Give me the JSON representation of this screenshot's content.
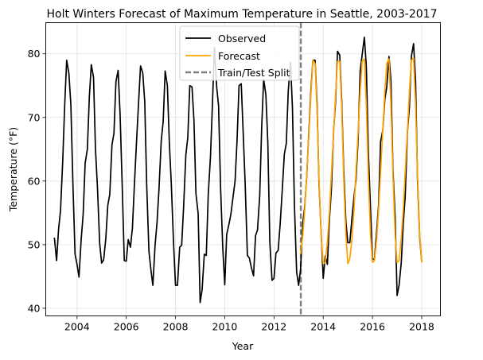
{
  "chart_data": {
    "type": "line",
    "title": "Holt Winters Forecast of Maximum Temperature in Seattle, 2003-2017",
    "xlabel": "Year",
    "ylabel": "Temperature (°F)",
    "xlim": [
      2002.73,
      2018.76
    ],
    "ylim": [
      38.8,
      84.9
    ],
    "x_ticks": [
      2004,
      2006,
      2008,
      2010,
      2012,
      2014,
      2016,
      2018
    ],
    "y_ticks": [
      40,
      50,
      60,
      70,
      80
    ],
    "grid": true,
    "legend_position": "top-center",
    "split_year": 2013.09,
    "series": [
      {
        "name": "Observed",
        "color": "#000000",
        "points": [
          [
            2003.08,
            51.1
          ],
          [
            2003.17,
            47.5
          ],
          [
            2003.25,
            52.4
          ],
          [
            2003.33,
            55.4
          ],
          [
            2003.42,
            63.2
          ],
          [
            2003.5,
            72.0
          ],
          [
            2003.58,
            79.0
          ],
          [
            2003.67,
            76.9
          ],
          [
            2003.75,
            72.0
          ],
          [
            2003.83,
            60.0
          ],
          [
            2003.92,
            48.5
          ],
          [
            2004.0,
            46.9
          ],
          [
            2004.08,
            44.9
          ],
          [
            2004.17,
            50.9
          ],
          [
            2004.25,
            54.8
          ],
          [
            2004.33,
            62.8
          ],
          [
            2004.42,
            65.0
          ],
          [
            2004.5,
            73.2
          ],
          [
            2004.58,
            78.3
          ],
          [
            2004.67,
            76.3
          ],
          [
            2004.75,
            65.0
          ],
          [
            2004.83,
            59.0
          ],
          [
            2004.92,
            50.2
          ],
          [
            2005.0,
            47.1
          ],
          [
            2005.08,
            47.6
          ],
          [
            2005.17,
            51.0
          ],
          [
            2005.25,
            56.2
          ],
          [
            2005.33,
            57.9
          ],
          [
            2005.42,
            65.7
          ],
          [
            2005.5,
            67.5
          ],
          [
            2005.58,
            75.6
          ],
          [
            2005.67,
            77.4
          ],
          [
            2005.75,
            70.4
          ],
          [
            2005.83,
            60.0
          ],
          [
            2005.92,
            47.5
          ],
          [
            2006.0,
            47.4
          ],
          [
            2006.08,
            50.8
          ],
          [
            2006.17,
            49.6
          ],
          [
            2006.25,
            52.6
          ],
          [
            2006.33,
            59.4
          ],
          [
            2006.42,
            66.4
          ],
          [
            2006.5,
            72.3
          ],
          [
            2006.58,
            78.1
          ],
          [
            2006.67,
            77.0
          ],
          [
            2006.75,
            72.5
          ],
          [
            2006.83,
            59.4
          ],
          [
            2006.92,
            49.0
          ],
          [
            2007.0,
            46.1
          ],
          [
            2007.08,
            43.6
          ],
          [
            2007.17,
            49.9
          ],
          [
            2007.25,
            53.5
          ],
          [
            2007.33,
            58.8
          ],
          [
            2007.42,
            66.3
          ],
          [
            2007.5,
            69.4
          ],
          [
            2007.58,
            77.3
          ],
          [
            2007.67,
            75.0
          ],
          [
            2007.75,
            66.0
          ],
          [
            2007.83,
            59.5
          ],
          [
            2007.92,
            50.3
          ],
          [
            2008.0,
            43.6
          ],
          [
            2008.08,
            43.6
          ],
          [
            2008.17,
            49.6
          ],
          [
            2008.25,
            49.9
          ],
          [
            2008.33,
            56.0
          ],
          [
            2008.42,
            64.1
          ],
          [
            2008.5,
            66.9
          ],
          [
            2008.58,
            75.0
          ],
          [
            2008.67,
            74.8
          ],
          [
            2008.75,
            69.5
          ],
          [
            2008.83,
            58.0
          ],
          [
            2008.92,
            54.9
          ],
          [
            2009.0,
            40.9
          ],
          [
            2009.08,
            42.9
          ],
          [
            2009.17,
            48.5
          ],
          [
            2009.25,
            48.3
          ],
          [
            2009.33,
            57.9
          ],
          [
            2009.42,
            63.8
          ],
          [
            2009.5,
            72.1
          ],
          [
            2009.58,
            81.0
          ],
          [
            2009.67,
            74.9
          ],
          [
            2009.75,
            71.8
          ],
          [
            2009.83,
            59.0
          ],
          [
            2009.92,
            49.5
          ],
          [
            2010.0,
            43.7
          ],
          [
            2010.08,
            51.6
          ],
          [
            2010.17,
            53.2
          ],
          [
            2010.25,
            54.8
          ],
          [
            2010.33,
            57.3
          ],
          [
            2010.42,
            60.0
          ],
          [
            2010.5,
            66.4
          ],
          [
            2010.58,
            75.0
          ],
          [
            2010.67,
            75.3
          ],
          [
            2010.75,
            67.5
          ],
          [
            2010.83,
            59.5
          ],
          [
            2010.92,
            48.3
          ],
          [
            2011.0,
            47.9
          ],
          [
            2011.08,
            46.4
          ],
          [
            2011.17,
            45.1
          ],
          [
            2011.25,
            51.4
          ],
          [
            2011.33,
            52.3
          ],
          [
            2011.42,
            57.7
          ],
          [
            2011.5,
            68.4
          ],
          [
            2011.58,
            76.0
          ],
          [
            2011.67,
            73.6
          ],
          [
            2011.75,
            66.0
          ],
          [
            2011.83,
            50.5
          ],
          [
            2011.92,
            44.4
          ],
          [
            2012.0,
            44.7
          ],
          [
            2012.08,
            48.7
          ],
          [
            2012.17,
            49.1
          ],
          [
            2012.25,
            53.2
          ],
          [
            2012.33,
            58.2
          ],
          [
            2012.42,
            64.2
          ],
          [
            2012.5,
            65.9
          ],
          [
            2012.58,
            74.2
          ],
          [
            2012.67,
            78.7
          ],
          [
            2012.75,
            71.5
          ],
          [
            2012.83,
            56.2
          ],
          [
            2012.92,
            45.7
          ],
          [
            2013.0,
            43.6
          ],
          [
            2013.08,
            46.1
          ],
          [
            2013.17,
            53.4
          ],
          [
            2013.25,
            56.0
          ],
          [
            2013.33,
            60.8
          ],
          [
            2013.42,
            68.0
          ],
          [
            2013.5,
            74.3
          ],
          [
            2013.58,
            79.0
          ],
          [
            2013.67,
            79.0
          ],
          [
            2013.75,
            72.0
          ],
          [
            2013.83,
            59.4
          ],
          [
            2013.92,
            51.4
          ],
          [
            2014.0,
            44.7
          ],
          [
            2014.08,
            48.2
          ],
          [
            2014.17,
            46.9
          ],
          [
            2014.25,
            53.9
          ],
          [
            2014.33,
            58.6
          ],
          [
            2014.42,
            67.8
          ],
          [
            2014.5,
            72.4
          ],
          [
            2014.58,
            80.4
          ],
          [
            2014.67,
            79.8
          ],
          [
            2014.75,
            72.5
          ],
          [
            2014.83,
            62.0
          ],
          [
            2014.92,
            53.6
          ],
          [
            2015.0,
            50.3
          ],
          [
            2015.08,
            50.3
          ],
          [
            2015.17,
            54.3
          ],
          [
            2015.25,
            57.5
          ],
          [
            2015.33,
            60.2
          ],
          [
            2015.42,
            66.8
          ],
          [
            2015.5,
            77.3
          ],
          [
            2015.58,
            79.8
          ],
          [
            2015.67,
            82.6
          ],
          [
            2015.75,
            78.1
          ],
          [
            2015.83,
            64.8
          ],
          [
            2015.92,
            55.7
          ],
          [
            2016.0,
            47.7
          ],
          [
            2016.08,
            47.7
          ],
          [
            2016.17,
            52.1
          ],
          [
            2016.25,
            56.3
          ],
          [
            2016.33,
            66.2
          ],
          [
            2016.42,
            68.0
          ],
          [
            2016.5,
            72.8
          ],
          [
            2016.58,
            74.8
          ],
          [
            2016.67,
            79.6
          ],
          [
            2016.75,
            75.8
          ],
          [
            2016.83,
            61.9
          ],
          [
            2016.92,
            54.4
          ],
          [
            2017.0,
            42.0
          ],
          [
            2017.08,
            43.6
          ],
          [
            2017.17,
            47.2
          ],
          [
            2017.25,
            53.3
          ],
          [
            2017.33,
            57.6
          ],
          [
            2017.42,
            67.8
          ],
          [
            2017.5,
            71.6
          ],
          [
            2017.58,
            79.6
          ],
          [
            2017.67,
            81.6
          ],
          [
            2017.75,
            75.8
          ],
          [
            2017.83,
            60.2
          ],
          [
            2017.92,
            51.0
          ],
          [
            2018.0,
            47.3
          ]
        ]
      },
      {
        "name": "Forecast",
        "color": "#ffa500",
        "points": [
          [
            2013.08,
            48.5
          ],
          [
            2013.17,
            51.5
          ],
          [
            2013.25,
            55.5
          ],
          [
            2013.33,
            61.0
          ],
          [
            2013.42,
            67.5
          ],
          [
            2013.5,
            73.5
          ],
          [
            2013.58,
            79.0
          ],
          [
            2013.67,
            78.5
          ],
          [
            2013.75,
            71.0
          ],
          [
            2013.83,
            60.0
          ],
          [
            2013.92,
            51.0
          ],
          [
            2014.0,
            47.0
          ],
          [
            2014.08,
            47.2
          ],
          [
            2014.17,
            50.5
          ],
          [
            2014.25,
            55.0
          ],
          [
            2014.33,
            61.0
          ],
          [
            2014.42,
            67.5
          ],
          [
            2014.5,
            73.5
          ],
          [
            2014.58,
            78.8
          ],
          [
            2014.67,
            78.8
          ],
          [
            2014.75,
            71.5
          ],
          [
            2014.83,
            60.5
          ],
          [
            2014.92,
            51.5
          ],
          [
            2015.0,
            47.0
          ],
          [
            2015.08,
            47.8
          ],
          [
            2015.17,
            51.0
          ],
          [
            2015.25,
            55.5
          ],
          [
            2015.33,
            61.5
          ],
          [
            2015.42,
            68.0
          ],
          [
            2015.5,
            74.0
          ],
          [
            2015.58,
            78.8
          ],
          [
            2015.67,
            79.2
          ],
          [
            2015.75,
            72.0
          ],
          [
            2015.83,
            61.0
          ],
          [
            2015.92,
            51.5
          ],
          [
            2016.0,
            47.2
          ],
          [
            2016.08,
            47.5
          ],
          [
            2016.17,
            50.8
          ],
          [
            2016.25,
            55.5
          ],
          [
            2016.33,
            61.5
          ],
          [
            2016.42,
            68.0
          ],
          [
            2016.5,
            74.0
          ],
          [
            2016.58,
            78.5
          ],
          [
            2016.67,
            79.2
          ],
          [
            2016.75,
            72.0
          ],
          [
            2016.83,
            61.0
          ],
          [
            2016.92,
            51.5
          ],
          [
            2017.0,
            47.2
          ],
          [
            2017.08,
            47.5
          ],
          [
            2017.17,
            51.0
          ],
          [
            2017.25,
            55.5
          ],
          [
            2017.33,
            61.5
          ],
          [
            2017.42,
            68.0
          ],
          [
            2017.5,
            74.0
          ],
          [
            2017.58,
            79.0
          ],
          [
            2017.67,
            79.3
          ],
          [
            2017.75,
            72.0
          ],
          [
            2017.83,
            61.0
          ],
          [
            2017.92,
            51.5
          ],
          [
            2018.0,
            47.2
          ]
        ]
      }
    ],
    "legend": [
      {
        "label": "Observed",
        "color": "#000000",
        "style": "solid"
      },
      {
        "label": "Forecast",
        "color": "#ffa500",
        "style": "solid"
      },
      {
        "label": "Train/Test Split",
        "color": "#808080",
        "style": "dashed"
      }
    ]
  }
}
